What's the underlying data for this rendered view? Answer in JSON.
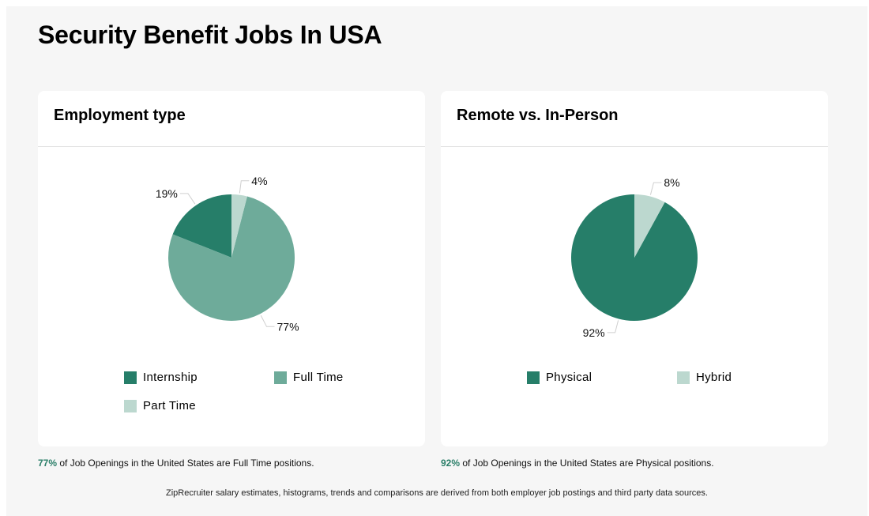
{
  "page": {
    "title": "Security Benefit Jobs In USA",
    "footer": "ZipRecruiter salary estimates, histograms, trends and comparisons are derived from both employer job postings and third party data sources."
  },
  "colors": {
    "dark_green": "#267e69",
    "mid_green": "#6eab9a",
    "light_green": "#bcd8cf",
    "accent": "#2a7e68",
    "panel_bg": "#f6f6f6"
  },
  "employment": {
    "title": "Employment type",
    "caption_pct": "77%",
    "caption_text": " of Job Openings in the United States are Full Time positions."
  },
  "remote": {
    "title": "Remote vs. In-Person",
    "caption_pct": "92%",
    "caption_text": " of Job Openings in the United States are Physical positions."
  },
  "chart_data": [
    {
      "type": "pie",
      "title": "Employment type",
      "categories": [
        "Internship",
        "Full Time",
        "Part Time"
      ],
      "values": [
        19,
        77,
        4
      ],
      "labels": [
        "19%",
        "77%",
        "4%"
      ],
      "colors": [
        "#267e69",
        "#6eab9a",
        "#bcd8cf"
      ],
      "legend_position": "bottom"
    },
    {
      "type": "pie",
      "title": "Remote vs. In-Person",
      "categories": [
        "Physical",
        "Hybrid"
      ],
      "values": [
        92,
        8
      ],
      "labels": [
        "92%",
        "8%"
      ],
      "colors": [
        "#267e69",
        "#bcd8cf"
      ],
      "legend_position": "bottom"
    }
  ]
}
